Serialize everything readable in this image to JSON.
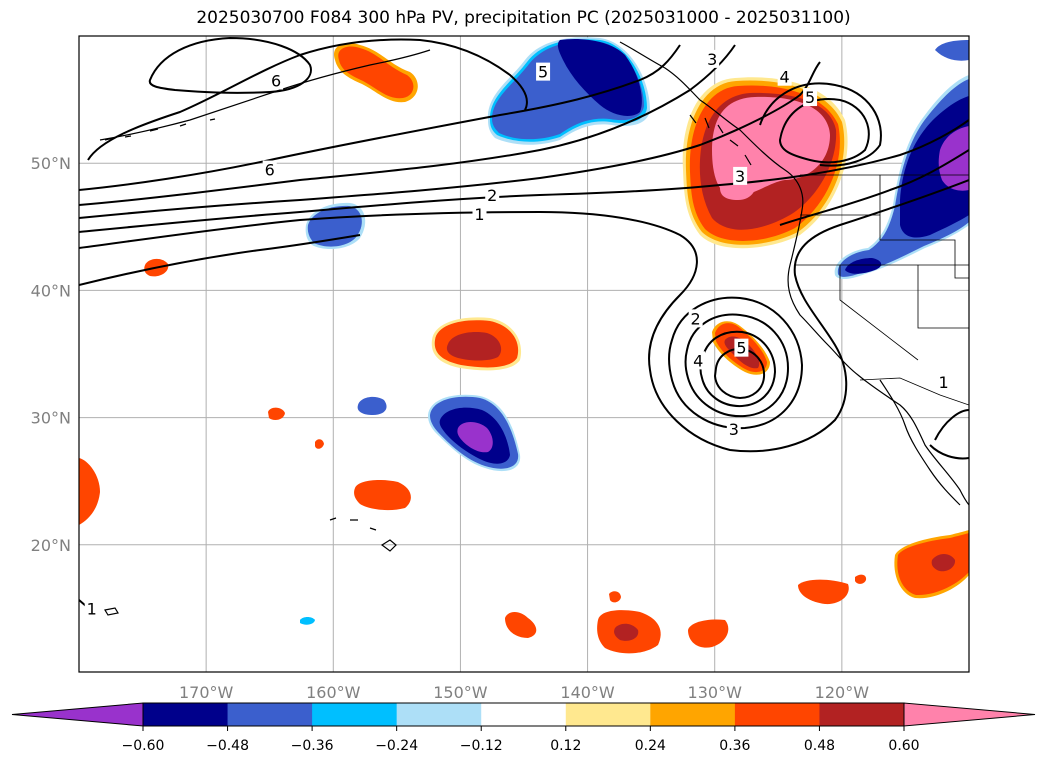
{
  "title": "2025030700 F084 300 hPa PV, precipitation PC (2025031000 - 2025031100)",
  "map": {
    "lon_range": [
      -180,
      -110
    ],
    "lat_range": [
      10,
      60
    ],
    "lat_ticks": [
      {
        "value": 20,
        "label": "20°N"
      },
      {
        "value": 30,
        "label": "30°N"
      },
      {
        "value": 40,
        "label": "40°N"
      },
      {
        "value": 50,
        "label": "50°N"
      }
    ],
    "lon_ticks": [
      {
        "value": -170,
        "label": "170°W"
      },
      {
        "value": -160,
        "label": "160°W"
      },
      {
        "value": -150,
        "label": "150°W"
      },
      {
        "value": -140,
        "label": "140°W"
      },
      {
        "value": -130,
        "label": "130°W"
      },
      {
        "value": -120,
        "label": "120°W"
      }
    ],
    "grid": true
  },
  "contour_labels": [
    {
      "text": "6",
      "lon": -164.5,
      "lat": 56.5
    },
    {
      "text": "6",
      "lon": -165,
      "lat": 49.5
    },
    {
      "text": "5",
      "lon": -143.5,
      "lat": 57.2
    },
    {
      "text": "3",
      "lon": -130.2,
      "lat": 58.2
    },
    {
      "text": "4",
      "lon": -124.5,
      "lat": 56.8
    },
    {
      "text": "5",
      "lon": -122.5,
      "lat": 55.2
    },
    {
      "text": "3",
      "lon": -128,
      "lat": 49
    },
    {
      "text": "2",
      "lon": -147.5,
      "lat": 47.5
    },
    {
      "text": "1",
      "lon": -148.5,
      "lat": 46
    },
    {
      "text": "2",
      "lon": -131.5,
      "lat": 37.8
    },
    {
      "text": "4",
      "lon": -131.3,
      "lat": 34.5
    },
    {
      "text": "5",
      "lon": -127.9,
      "lat": 35.5
    },
    {
      "text": "3",
      "lon": -128.5,
      "lat": 29.1
    },
    {
      "text": "1",
      "lon": -112,
      "lat": 32.8
    },
    {
      "text": "1",
      "lon": -179,
      "lat": 15
    }
  ],
  "colorbar": {
    "levels": [
      -0.72,
      -0.6,
      -0.48,
      -0.36,
      -0.24,
      -0.12,
      0.12,
      0.24,
      0.36,
      0.48,
      0.6,
      0.72
    ],
    "colors": [
      "#9932CC",
      "#00008B",
      "#3B5FCD",
      "#00BFFF",
      "#ADDFF7",
      "#FFFFFF",
      "#FFE88F",
      "#FFA500",
      "#FF4500",
      "#B22222",
      "#FF82AB"
    ],
    "under_color": "#9932CC",
    "over_color": "#FF82AB",
    "tick_labels": [
      "−0.60",
      "−0.48",
      "−0.36",
      "−0.24",
      "−0.12",
      "0.12",
      "0.24",
      "0.36",
      "0.48",
      "0.60"
    ]
  }
}
